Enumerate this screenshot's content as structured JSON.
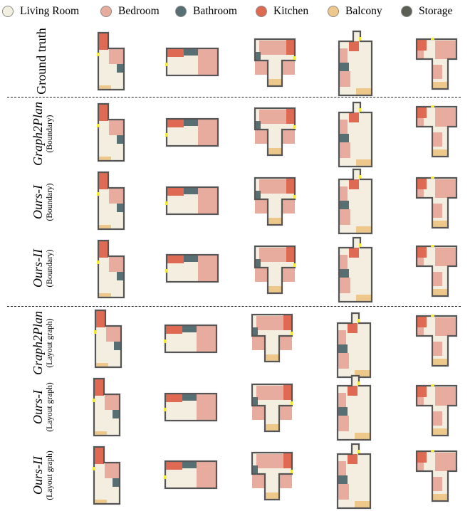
{
  "colors": {
    "living": "#f3eedf",
    "bedroom": "#e7ac9d",
    "bathroom": "#576f72",
    "kitchen": "#de6a53",
    "balcony": "#eec88b",
    "storage": "#5a6152",
    "wall": "#555555",
    "door": "#f3e93a"
  },
  "legend": [
    {
      "label": "Living Room",
      "color": "#f3eedf"
    },
    {
      "label": "Bedroom",
      "color": "#e7ac9d"
    },
    {
      "label": "Bathroom",
      "color": "#576f72"
    },
    {
      "label": "Kitchen",
      "color": "#de6a53"
    },
    {
      "label": "Balcony",
      "color": "#eec88b"
    },
    {
      "label": "Storage",
      "color": "#5a6152"
    }
  ],
  "rows": [
    {
      "title": "Ground truth",
      "subtitle": ""
    },
    {
      "title": "Graph2Plan",
      "subtitle": "(Boundary)"
    },
    {
      "title": "Ours-I",
      "subtitle": "(Boundary)"
    },
    {
      "title": "Ours-II",
      "subtitle": "(Boundary)"
    },
    {
      "title": "Graph2Plan",
      "subtitle": "(Layout graph)"
    },
    {
      "title": "Ours-I",
      "subtitle": "(Layout graph)"
    },
    {
      "title": "Ours-II",
      "subtitle": "(Layout graph)"
    }
  ],
  "columns": [
    "plan-a",
    "plan-b",
    "plan-c",
    "plan-d",
    "plan-e"
  ]
}
